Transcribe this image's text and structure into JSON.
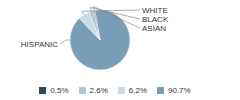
{
  "chart_data": {
    "type": "pie",
    "categories": [
      "HISPANIC",
      "WHITE",
      "BLACK",
      "ASIAN"
    ],
    "values": [
      90.7,
      6.2,
      2.6,
      0.5
    ],
    "value_labels": [
      "90.7%",
      "6.2%",
      "2.6%",
      "0.5%"
    ],
    "colors": [
      "#7a9eb5",
      "#c8dce8",
      "#b0c8d8",
      "#2e4a5e"
    ],
    "legend": "bottom"
  }
}
